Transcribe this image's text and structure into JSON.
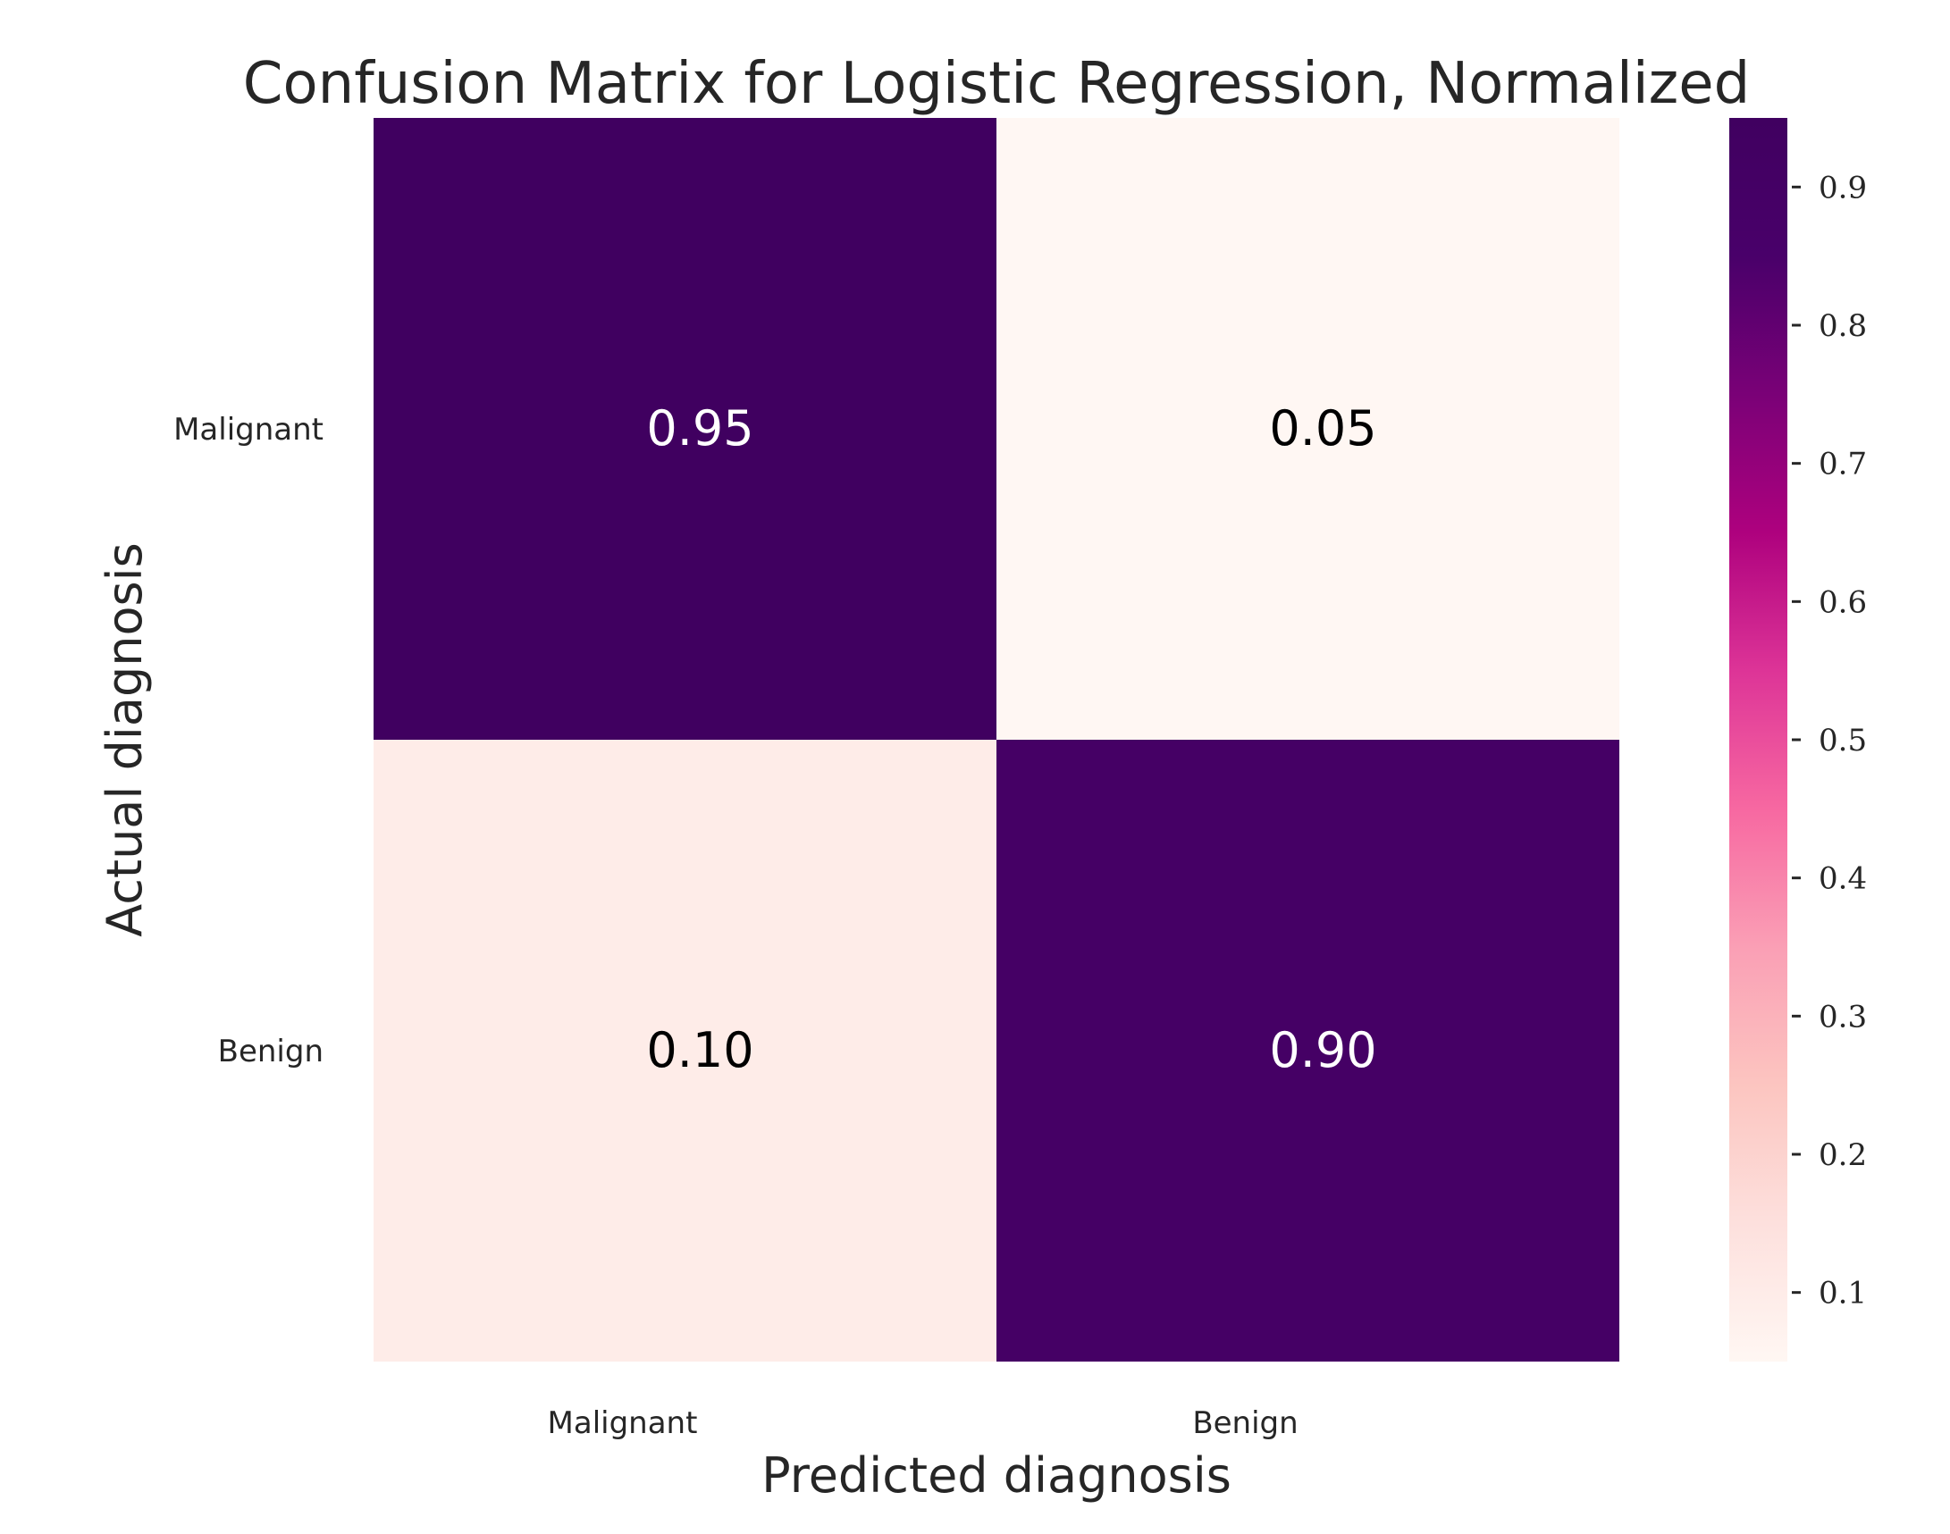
{
  "chart_data": {
    "type": "heatmap",
    "title": "Confusion Matrix for Logistic Regression, Normalized",
    "xlabel": "Predicted diagnosis",
    "ylabel": "Actual diagnosis",
    "x_categories": [
      "Malignant",
      "Benign"
    ],
    "y_categories": [
      "Malignant",
      "Benign"
    ],
    "values": [
      [
        0.95,
        0.05
      ],
      [
        0.1,
        0.9
      ]
    ],
    "cell_labels": [
      [
        "0.95",
        "0.05"
      ],
      [
        "0.10",
        "0.90"
      ]
    ],
    "colorbar": {
      "range": [
        0.05,
        0.95
      ],
      "ticks": [
        0.1,
        0.2,
        0.3,
        0.4,
        0.5,
        0.6,
        0.7,
        0.8,
        0.9
      ],
      "tick_labels": [
        "0.1",
        "0.2",
        "0.3",
        "0.4",
        "0.5",
        "0.6",
        "0.7",
        "0.8",
        "0.9"
      ]
    },
    "colormap": "RdPu",
    "colormap_stops": [
      "#fff7f3",
      "#fde0dd",
      "#fcc5c0",
      "#fa9fb5",
      "#f768a1",
      "#dd3497",
      "#ae017e",
      "#7a0177",
      "#49006a",
      "#400060"
    ]
  }
}
